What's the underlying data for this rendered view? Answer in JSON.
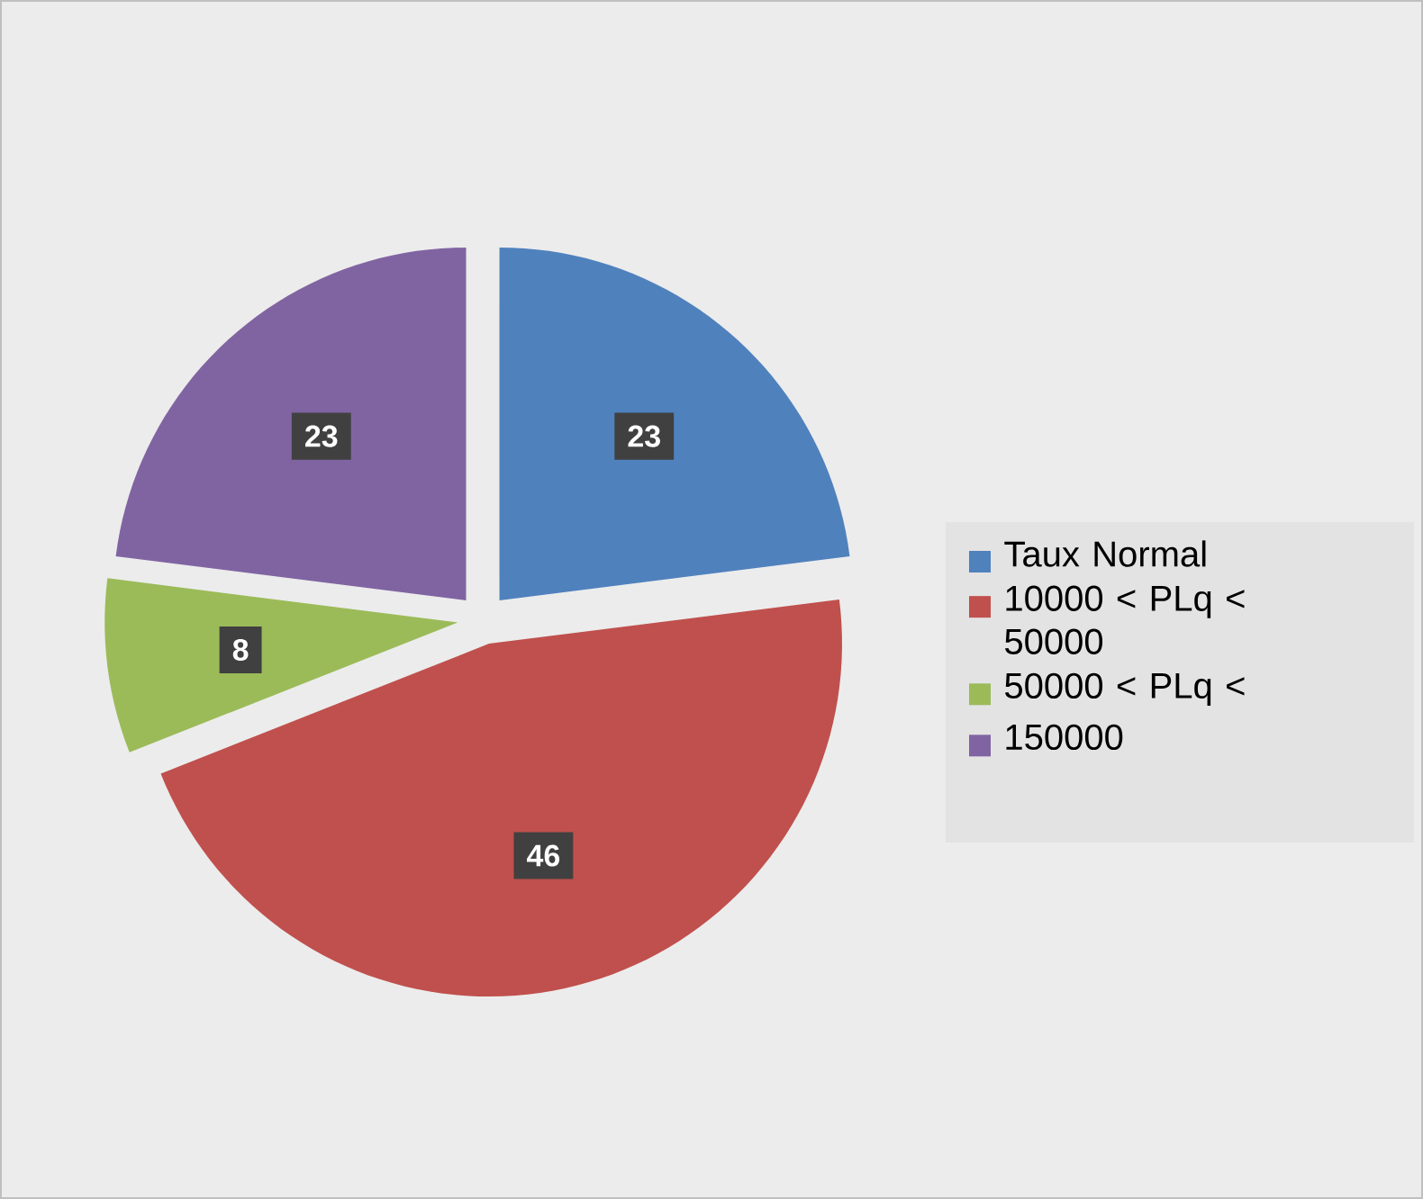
{
  "chart_data": {
    "type": "pie",
    "categories": [
      "Taux Normal",
      "10000 < PLq < 50000",
      "50000 < PLq <",
      "150000"
    ],
    "values": [
      23,
      46,
      8,
      23
    ],
    "value_labels": [
      "23",
      "46",
      "8",
      "23"
    ],
    "colors": [
      "#4f81bd",
      "#c0504d",
      "#9bbb59",
      "#8064a2"
    ],
    "legend": "right"
  }
}
